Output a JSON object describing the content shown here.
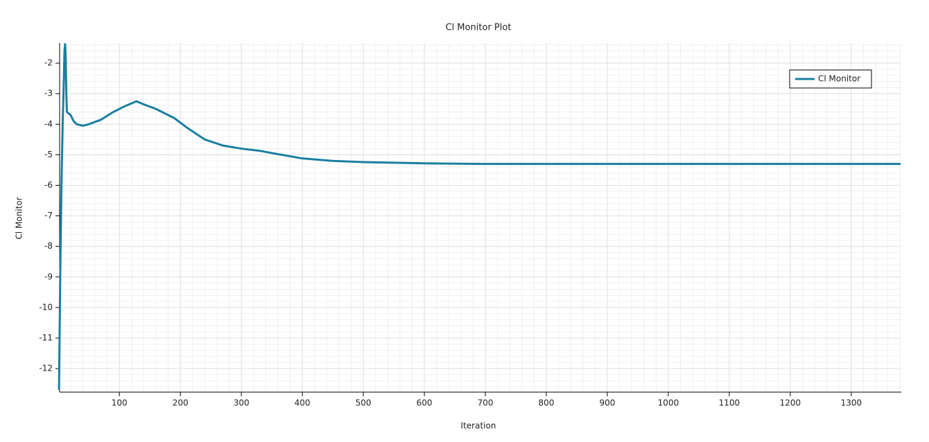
{
  "chart_data": {
    "type": "line",
    "title": "Cl Monitor Plot",
    "x_label": "Iteration",
    "y_label": "Cl Monitor",
    "x": [
      1,
      3,
      5,
      7,
      9,
      10,
      11,
      12,
      13,
      14,
      17,
      20,
      25,
      30,
      40,
      50,
      70,
      90,
      110,
      128,
      140,
      160,
      190,
      210,
      240,
      270,
      300,
      330,
      360,
      400,
      450,
      500,
      600,
      700,
      1381
    ],
    "series": [
      {
        "name": "Cl Monitor",
        "color": "#1a7fa0",
        "values": [
          -12.7,
          -9,
          -6,
          -4,
          -2.5,
          -1.6,
          -1.38,
          -1.8,
          -3,
          -3.6,
          -3.65,
          -3.7,
          -3.9,
          -4.0,
          -4.05,
          -4.0,
          -3.85,
          -3.6,
          -3.4,
          -3.25,
          -3.35,
          -3.5,
          -3.8,
          -4.1,
          -4.5,
          -4.7,
          -4.8,
          -4.87,
          -4.98,
          -5.12,
          -5.2,
          -5.24,
          -5.28,
          -5.3,
          -5.3
        ]
      }
    ],
    "xlim": [
      2,
      1382
    ],
    "ylim": [
      -12.77,
      -1.34
    ],
    "xticks": [
      100,
      200,
      300,
      400,
      500,
      600,
      700,
      800,
      900,
      1000,
      1100,
      1200,
      1300
    ],
    "yticks": [
      -12,
      -11,
      -10,
      -9,
      -8,
      -7,
      -6,
      -5,
      -4,
      -3,
      -2
    ],
    "grid": true,
    "minor_grid": true,
    "legend": "upper right"
  }
}
